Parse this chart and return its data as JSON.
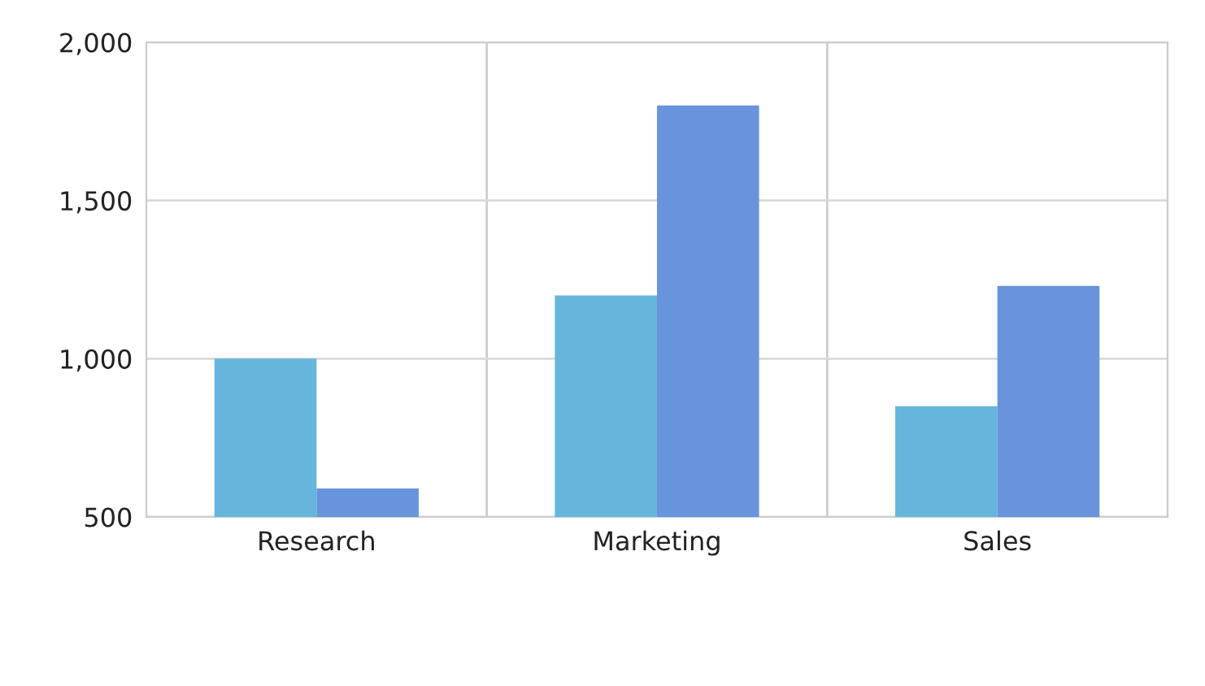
{
  "chart_data": {
    "type": "bar",
    "categories": [
      "Research",
      "Marketing",
      "Sales"
    ],
    "series": [
      {
        "color": "#66b5dc",
        "values": [
          1000,
          1200,
          850
        ]
      },
      {
        "color": "#6794dc",
        "values": [
          590,
          1800,
          1230
        ]
      }
    ],
    "ylim": [
      500,
      2000
    ],
    "yticks": [
      {
        "value": 500,
        "label": "500"
      },
      {
        "value": 1000,
        "label": "1,000"
      },
      {
        "value": 1500,
        "label": "1,500"
      },
      {
        "value": 2000,
        "label": "2,000"
      }
    ],
    "grid": true,
    "legend": false
  }
}
